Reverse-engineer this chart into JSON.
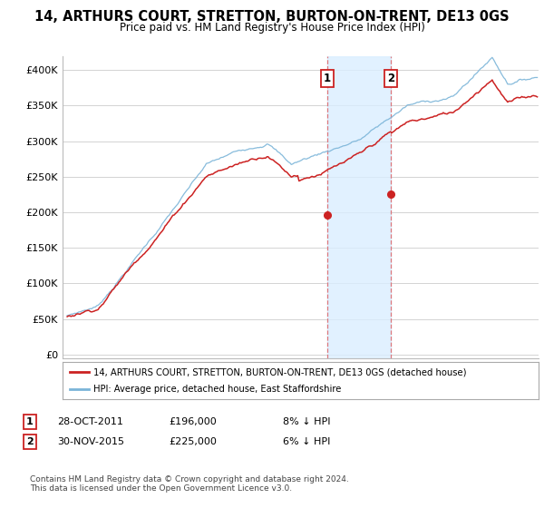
{
  "title": "14, ARTHURS COURT, STRETTON, BURTON-ON-TRENT, DE13 0GS",
  "subtitle": "Price paid vs. HM Land Registry's House Price Index (HPI)",
  "ylabel_ticks": [
    "£0",
    "£50K",
    "£100K",
    "£150K",
    "£200K",
    "£250K",
    "£300K",
    "£350K",
    "£400K"
  ],
  "ytick_values": [
    0,
    50000,
    100000,
    150000,
    200000,
    250000,
    300000,
    350000,
    400000
  ],
  "ylim": [
    -5000,
    420000
  ],
  "xlim_start": 1994.7,
  "xlim_end": 2025.5,
  "hpi_color": "#7ab4d8",
  "price_color": "#cc2222",
  "marker1_x": 2011.83,
  "marker1_y": 196000,
  "marker2_x": 2015.92,
  "marker2_y": 225000,
  "shade_x1": 2011.83,
  "shade_x2": 2015.92,
  "legend_label1": "14, ARTHURS COURT, STRETTON, BURTON-ON-TRENT, DE13 0GS (detached house)",
  "legend_label2": "HPI: Average price, detached house, East Staffordshire",
  "note1_num": "1",
  "note1_date": "28-OCT-2011",
  "note1_price": "£196,000",
  "note1_hpi": "8% ↓ HPI",
  "note2_num": "2",
  "note2_date": "30-NOV-2015",
  "note2_price": "£225,000",
  "note2_hpi": "6% ↓ HPI",
  "footer": "Contains HM Land Registry data © Crown copyright and database right 2024.\nThis data is licensed under the Open Government Licence v3.0.",
  "background_color": "#ffffff",
  "grid_color": "#cccccc"
}
